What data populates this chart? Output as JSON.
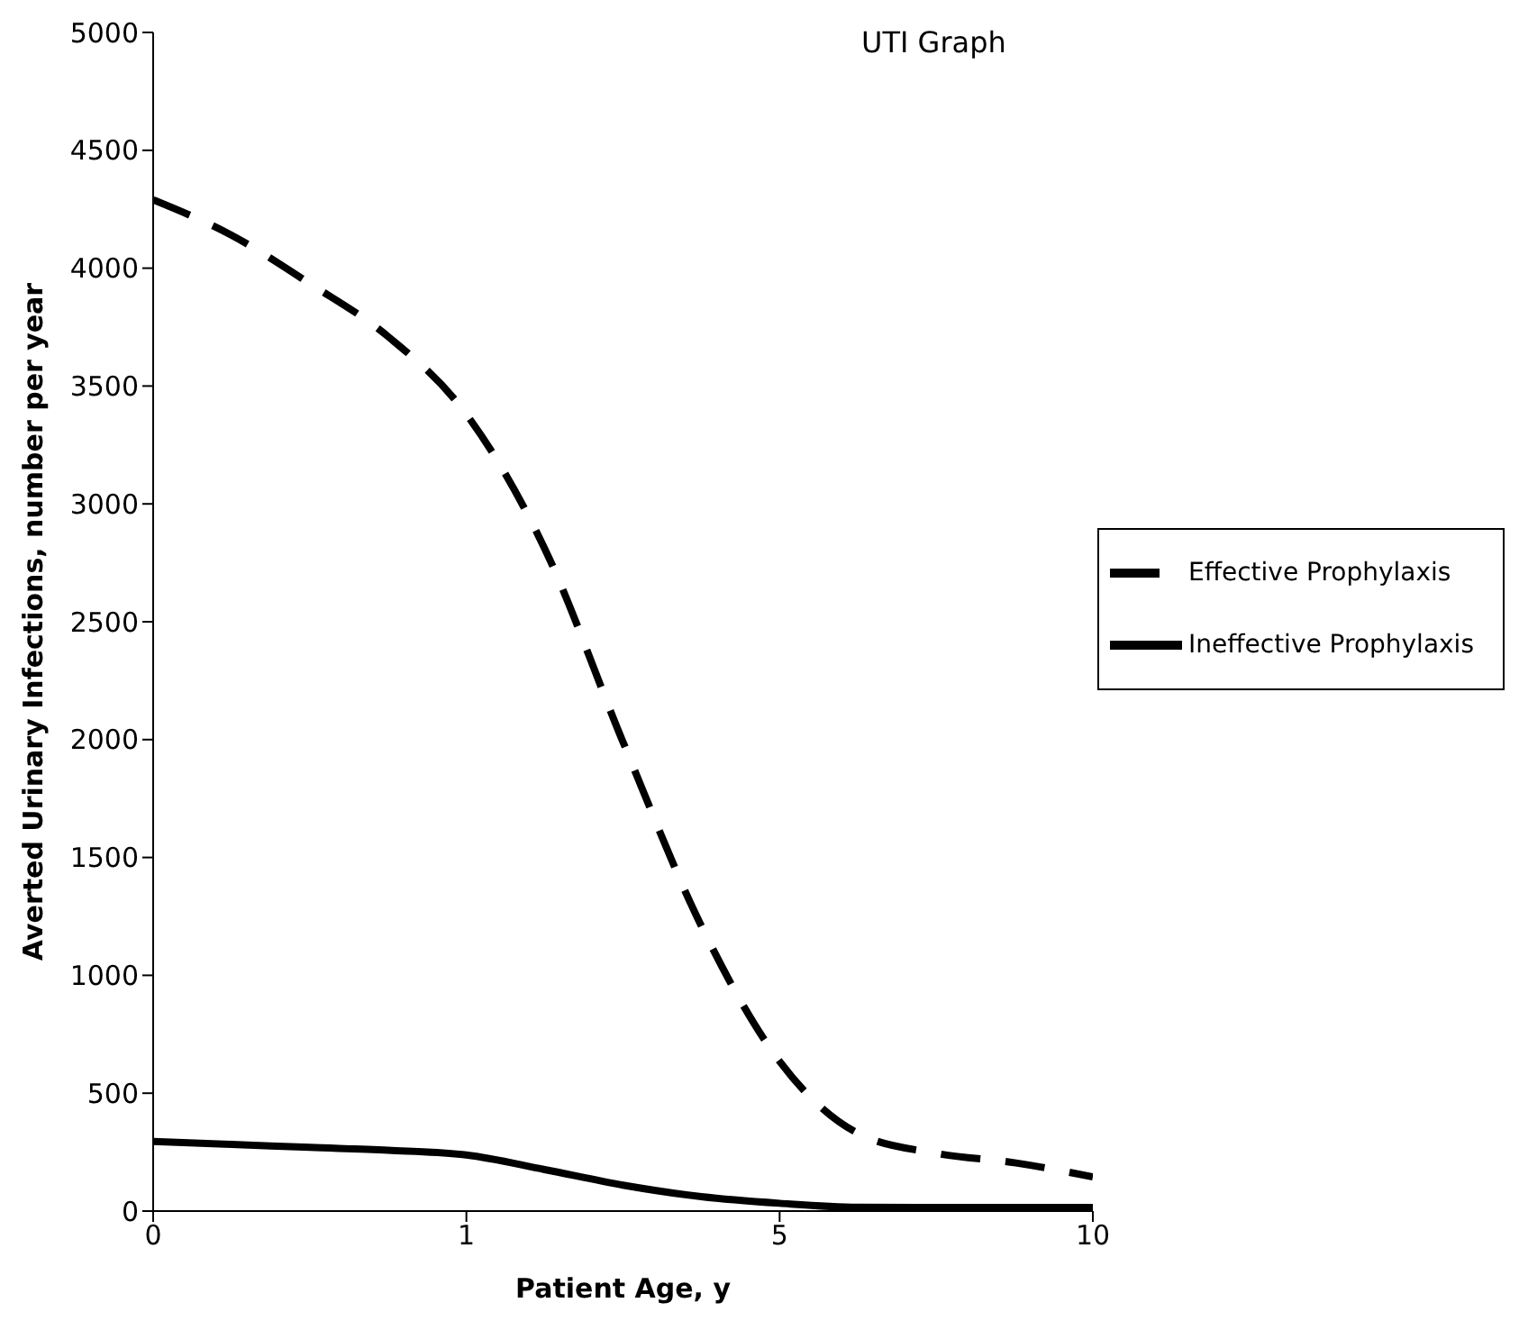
{
  "chart_data": {
    "type": "line",
    "title": "UTI Graph",
    "xlabel": "Patient Age, y",
    "ylabel": "Averted Urinary Infections, number per year",
    "categories": [
      "0",
      null,
      null,
      null,
      "1",
      null,
      null,
      null,
      "5",
      null,
      null,
      null,
      "10"
    ],
    "ylim": [
      0,
      5000
    ],
    "yticks": [
      0,
      500,
      1000,
      1500,
      2000,
      2500,
      3000,
      3500,
      4000,
      4500,
      5000
    ],
    "grid": false,
    "legend": "right",
    "marker": "none",
    "series": [
      {
        "name": "Effective Prophylaxis",
        "color": "#000000",
        "line_style": "dashed",
        "values": [
          4290,
          4140,
          3935,
          3710,
          3380,
          2810,
          1990,
          1210,
          635,
          330,
          245,
          205,
          145
        ]
      },
      {
        "name": "Ineffective Prophylaxis",
        "color": "#000000",
        "line_style": "solid",
        "values": [
          295,
          283,
          270,
          258,
          238,
          176,
          110,
          61,
          33,
          16,
          15,
          15,
          15
        ]
      }
    ]
  }
}
